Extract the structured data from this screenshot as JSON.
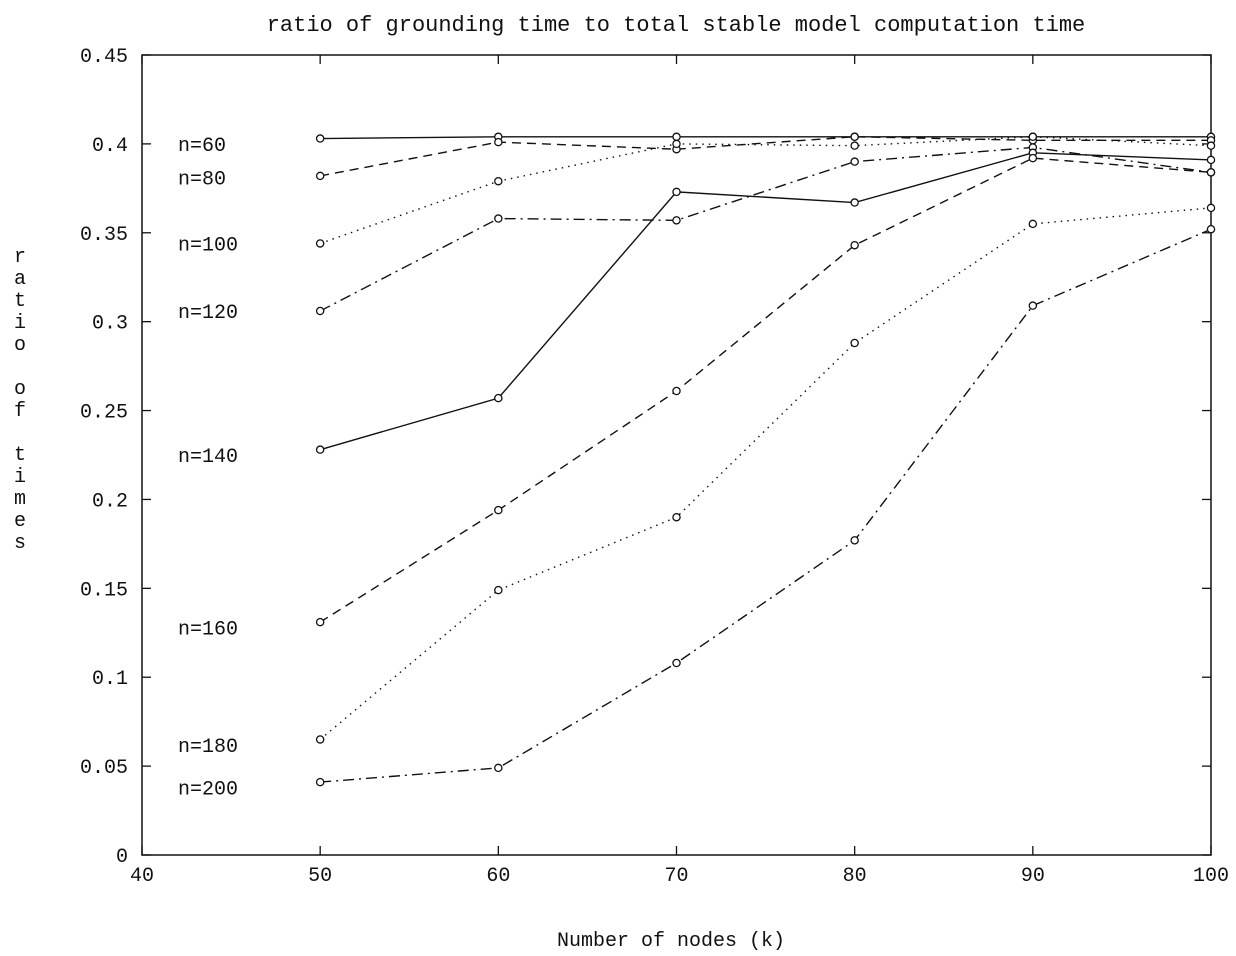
{
  "chart_data": {
    "type": "line",
    "title": "ratio of grounding time to total stable model computation time",
    "xlabel": "Number of nodes (k)",
    "ylabel": "ratio of times",
    "xlim": [
      40,
      100
    ],
    "ylim": [
      0,
      0.45
    ],
    "xticks": [
      40,
      50,
      60,
      70,
      80,
      90,
      100
    ],
    "xtick_labels": [
      "40",
      "50",
      "60",
      "70",
      "80",
      "90",
      "100"
    ],
    "yticks": [
      0,
      0.05,
      0.1,
      0.15,
      0.2,
      0.25,
      0.3,
      0.35,
      0.4,
      0.45
    ],
    "ytick_labels": [
      "0",
      "0.05",
      "0.1",
      "0.15",
      "0.2",
      "0.25",
      "0.3",
      "0.35",
      "0.4",
      "0.45"
    ],
    "grid": false,
    "x": [
      50,
      60,
      70,
      80,
      90,
      100
    ],
    "series": [
      {
        "name": "n=60",
        "style": "solid",
        "values": [
          0.403,
          0.404,
          0.404,
          0.404,
          0.404,
          0.404
        ]
      },
      {
        "name": "n=80",
        "style": "dashed",
        "values": [
          0.382,
          0.401,
          0.397,
          0.404,
          0.402,
          0.402
        ]
      },
      {
        "name": "n=100",
        "style": "dotted",
        "values": [
          0.344,
          0.379,
          0.4,
          0.399,
          0.404,
          0.399
        ]
      },
      {
        "name": "n=120",
        "style": "dashdot",
        "values": [
          0.306,
          0.358,
          0.357,
          0.39,
          0.398,
          0.384
        ]
      },
      {
        "name": "n=140",
        "style": "solid",
        "values": [
          0.228,
          0.257,
          0.373,
          0.367,
          0.395,
          0.391
        ]
      },
      {
        "name": "n=160",
        "style": "dashed",
        "values": [
          0.131,
          0.194,
          0.261,
          0.343,
          0.392,
          0.384
        ]
      },
      {
        "name": "n=180",
        "style": "dotted",
        "values": [
          0.065,
          0.149,
          0.19,
          0.288,
          0.355,
          0.364
        ]
      },
      {
        "name": "n=200",
        "style": "dashdot",
        "values": [
          0.041,
          0.049,
          0.108,
          0.177,
          0.309,
          0.352
        ]
      }
    ],
    "series_label_values": {
      "n=60": 0.4,
      "n=80": 0.381,
      "n=100": 0.344,
      "n=120": 0.306,
      "n=140": 0.225,
      "n=160": 0.128,
      "n=180": 0.062,
      "n=200": 0.038
    }
  }
}
